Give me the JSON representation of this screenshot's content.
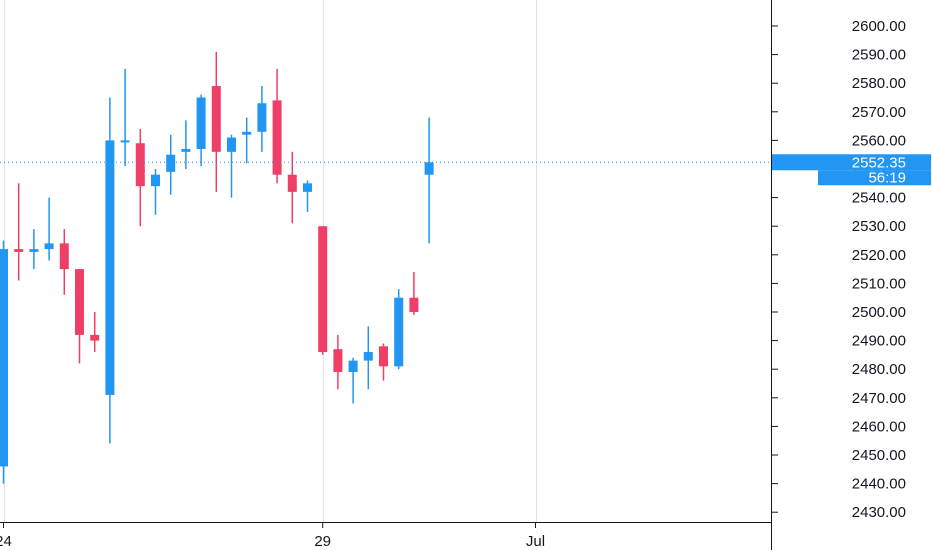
{
  "chart_data": {
    "type": "candlestick",
    "title": "",
    "xlabel": "",
    "ylabel": "",
    "ylim": [
      2425,
      2605
    ],
    "grid": true,
    "colors": {
      "up": "#2196f3",
      "down": "#ef3f67",
      "price_line": "#2196f3"
    },
    "x_ticks": [
      {
        "label": "24",
        "index": 0
      },
      {
        "label": "29",
        "index": 21
      },
      {
        "label": "Jul",
        "index": 35
      }
    ],
    "y_ticks": [
      {
        "label": "2430.00",
        "value": 2430
      },
      {
        "label": "2440.00",
        "value": 2440
      },
      {
        "label": "2450.00",
        "value": 2450
      },
      {
        "label": "2460.00",
        "value": 2460
      },
      {
        "label": "2470.00",
        "value": 2470
      },
      {
        "label": "2480.00",
        "value": 2480
      },
      {
        "label": "2490.00",
        "value": 2490
      },
      {
        "label": "2500.00",
        "value": 2500
      },
      {
        "label": "2510.00",
        "value": 2510
      },
      {
        "label": "2520.00",
        "value": 2520
      },
      {
        "label": "2530.00",
        "value": 2530
      },
      {
        "label": "2540.00",
        "value": 2540
      },
      {
        "label": "2550.00",
        "value": 2550
      },
      {
        "label": "2560.00",
        "value": 2560
      },
      {
        "label": "2570.00",
        "value": 2570
      },
      {
        "label": "2580.00",
        "value": 2580
      },
      {
        "label": "2590.00",
        "value": 2590
      },
      {
        "label": "2600.00",
        "value": 2600
      }
    ],
    "candles": [
      {
        "i": 0,
        "open": 2446,
        "high": 2525,
        "low": 2440,
        "close": 2522
      },
      {
        "i": 1,
        "open": 2522,
        "high": 2545,
        "low": 2511,
        "close": 2521
      },
      {
        "i": 2,
        "open": 2521,
        "high": 2529,
        "low": 2515,
        "close": 2522
      },
      {
        "i": 3,
        "open": 2522,
        "high": 2540,
        "low": 2518,
        "close": 2524
      },
      {
        "i": 4,
        "open": 2524,
        "high": 2529,
        "low": 2506,
        "close": 2515
      },
      {
        "i": 5,
        "open": 2515,
        "high": 2515,
        "low": 2482,
        "close": 2492
      },
      {
        "i": 6,
        "open": 2492,
        "high": 2500,
        "low": 2486,
        "close": 2490
      },
      {
        "i": 7,
        "open": 2471,
        "high": 2575,
        "low": 2454,
        "close": 2560
      },
      {
        "i": 8,
        "open": 2560,
        "high": 2585,
        "low": 2551,
        "close": 2560
      },
      {
        "i": 9,
        "open": 2559,
        "high": 2564,
        "low": 2530,
        "close": 2544
      },
      {
        "i": 10,
        "open": 2544,
        "high": 2550,
        "low": 2534,
        "close": 2548
      },
      {
        "i": 11,
        "open": 2549,
        "high": 2562,
        "low": 2541,
        "close": 2555
      },
      {
        "i": 12,
        "open": 2556,
        "high": 2567,
        "low": 2550,
        "close": 2557
      },
      {
        "i": 13,
        "open": 2557,
        "high": 2576,
        "low": 2551,
        "close": 2575
      },
      {
        "i": 14,
        "open": 2579,
        "high": 2591,
        "low": 2542,
        "close": 2556
      },
      {
        "i": 15,
        "open": 2556,
        "high": 2562,
        "low": 2540,
        "close": 2561
      },
      {
        "i": 16,
        "open": 2562,
        "high": 2568,
        "low": 2552,
        "close": 2563
      },
      {
        "i": 17,
        "open": 2563,
        "high": 2579,
        "low": 2556,
        "close": 2573
      },
      {
        "i": 18,
        "open": 2574,
        "high": 2585,
        "low": 2545,
        "close": 2548
      },
      {
        "i": 19,
        "open": 2548,
        "high": 2556,
        "low": 2531,
        "close": 2542
      },
      {
        "i": 20,
        "open": 2542,
        "high": 2546,
        "low": 2535,
        "close": 2545
      },
      {
        "i": 21,
        "open": 2530,
        "high": 2530,
        "low": 2485,
        "close": 2486
      },
      {
        "i": 22,
        "open": 2487,
        "high": 2492,
        "low": 2473,
        "close": 2479
      },
      {
        "i": 23,
        "open": 2479,
        "high": 2484,
        "low": 2468,
        "close": 2483
      },
      {
        "i": 24,
        "open": 2483,
        "high": 2495,
        "low": 2473,
        "close": 2486
      },
      {
        "i": 25,
        "open": 2488,
        "high": 2489,
        "low": 2476,
        "close": 2481
      },
      {
        "i": 26,
        "open": 2481,
        "high": 2508,
        "low": 2480,
        "close": 2505
      },
      {
        "i": 27,
        "open": 2505,
        "high": 2514,
        "low": 2499,
        "close": 2500
      },
      {
        "i": 28,
        "open": 2548,
        "high": 2568,
        "low": 2524,
        "close": 2552.35
      }
    ],
    "last_price": {
      "value": 2552.35,
      "label": "2552.35",
      "countdown": "56:19"
    }
  }
}
